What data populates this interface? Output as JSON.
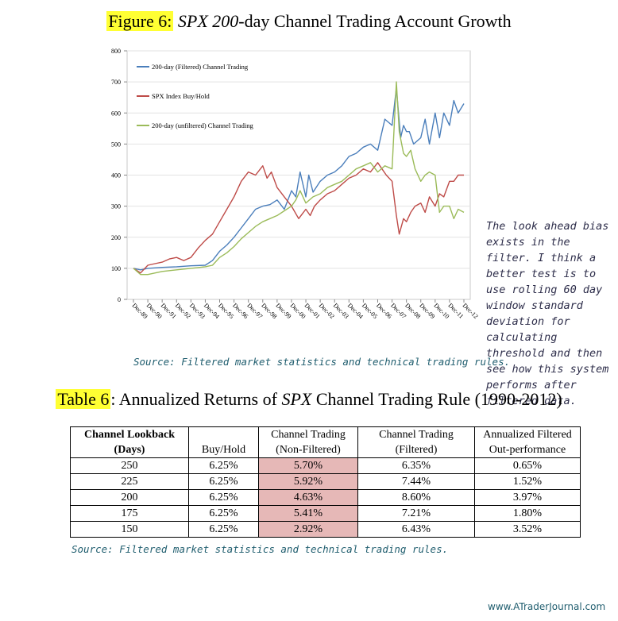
{
  "figure": {
    "label": "Figure 6:",
    "title_italic": "SPX 200",
    "title_rest": "-day Channel Trading Account Growth",
    "source": "Source: Filtered market statistics and technical trading rules."
  },
  "chart_data": {
    "type": "line",
    "ylim": [
      0,
      800
    ],
    "yticks": [
      0,
      100,
      200,
      300,
      400,
      500,
      600,
      700,
      800
    ],
    "categories": [
      "Dec-89",
      "Dec-90",
      "Dec-91",
      "Dec-92",
      "Dec-93",
      "Dec-94",
      "Dec-95",
      "Dec-96",
      "Dec-97",
      "Dec-98",
      "Dec-99",
      "Dec-00",
      "Dec-01",
      "Dec-02",
      "Dec-03",
      "Dec-04",
      "Dec-05",
      "Dec-06",
      "Dec-07",
      "Dec-08",
      "Dec-09",
      "Dec-10",
      "Dec-11",
      "Dec-12"
    ],
    "legend_position": "top-left",
    "grid": true,
    "series": [
      {
        "name": "200-day (Filtered) Channel Trading",
        "color": "#4a7ebb",
        "x": [
          0,
          0.5,
          1,
          2,
          3,
          4,
          5,
          5.5,
          6,
          6.5,
          7,
          7.5,
          8,
          8.5,
          9,
          9.5,
          10,
          10.5,
          11,
          11.3,
          11.6,
          12,
          12.2,
          12.5,
          13,
          13.5,
          14,
          14.5,
          15,
          15.5,
          16,
          16.5,
          17,
          17.5,
          18,
          18.3,
          18.6,
          18.8,
          19,
          19.2,
          19.5,
          20,
          20.3,
          20.6,
          21,
          21.3,
          21.6,
          22,
          22.3,
          22.6,
          23
        ],
        "values": [
          100,
          95,
          100,
          103,
          105,
          108,
          110,
          125,
          155,
          175,
          200,
          230,
          260,
          290,
          300,
          305,
          320,
          290,
          350,
          330,
          410,
          330,
          400,
          345,
          380,
          400,
          410,
          430,
          460,
          470,
          490,
          500,
          480,
          580,
          560,
          680,
          520,
          560,
          540,
          540,
          500,
          520,
          580,
          500,
          600,
          520,
          600,
          560,
          640,
          600,
          630
        ]
      },
      {
        "name": "SPX Index Buy/Hold",
        "color": "#be4b48",
        "x": [
          0,
          0.5,
          1,
          1.5,
          2,
          2.5,
          3,
          3.5,
          4,
          4.5,
          5,
          5.5,
          6,
          6.5,
          7,
          7.5,
          8,
          8.5,
          9,
          9.3,
          9.6,
          10,
          10.5,
          11,
          11.5,
          12,
          12.3,
          12.6,
          13,
          13.5,
          14,
          14.5,
          15,
          15.5,
          16,
          16.5,
          17,
          17.3,
          17.6,
          18,
          18.3,
          18.5,
          18.8,
          19,
          19.3,
          19.6,
          20,
          20.3,
          20.6,
          21,
          21.3,
          21.6,
          22,
          22.3,
          22.6,
          23
        ],
        "values": [
          100,
          85,
          110,
          115,
          120,
          130,
          135,
          125,
          135,
          165,
          190,
          210,
          250,
          290,
          330,
          380,
          410,
          400,
          430,
          390,
          410,
          360,
          330,
          300,
          260,
          290,
          270,
          300,
          320,
          340,
          350,
          370,
          390,
          400,
          420,
          410,
          440,
          420,
          400,
          380,
          270,
          210,
          260,
          250,
          280,
          300,
          310,
          280,
          330,
          300,
          340,
          330,
          380,
          380,
          400,
          400
        ]
      },
      {
        "name": "200-day (unfiltered) Channel Trading",
        "color": "#9bbb59",
        "x": [
          0,
          0.5,
          1,
          2,
          3,
          4,
          5,
          5.5,
          6,
          6.5,
          7,
          7.5,
          8,
          8.5,
          9,
          9.5,
          10,
          10.5,
          11,
          11.3,
          11.6,
          12,
          12.5,
          13,
          13.5,
          14,
          14.5,
          15,
          15.5,
          16,
          16.5,
          17,
          17.5,
          18,
          18.3,
          18.5,
          18.8,
          19,
          19.3,
          19.6,
          20,
          20.3,
          20.6,
          21,
          21.3,
          21.6,
          22,
          22.3,
          22.6,
          23
        ],
        "values": [
          100,
          80,
          80,
          90,
          95,
          100,
          105,
          110,
          135,
          150,
          170,
          195,
          215,
          235,
          250,
          260,
          270,
          285,
          300,
          320,
          350,
          310,
          330,
          340,
          360,
          370,
          380,
          400,
          420,
          430,
          440,
          410,
          430,
          420,
          700,
          540,
          470,
          460,
          480,
          420,
          380,
          400,
          410,
          400,
          280,
          300,
          300,
          260,
          290,
          280
        ]
      }
    ]
  },
  "note": "The look ahead bias exists in the filter. I think a better test is to use rolling 60 day window standard deviation for calculating threshold and then see how this system performs after filtered data.",
  "table": {
    "label": "Table 6",
    "title_a": ": Annualized Returns of ",
    "title_italic": "SPX",
    "title_b": " Channel Trading Rule (1990-2012)",
    "headers": [
      [
        "Channel Lookback",
        "(Days)"
      ],
      [
        "",
        "Buy/Hold"
      ],
      [
        "Channel Trading",
        "(Non-Filtered)"
      ],
      [
        "Channel Trading",
        "(Filtered)"
      ],
      [
        "Annualized Filtered",
        "Out-performance"
      ]
    ],
    "rows": [
      [
        "250",
        "6.25%",
        "5.70%",
        "6.35%",
        "0.65%"
      ],
      [
        "225",
        "6.25%",
        "5.92%",
        "7.44%",
        "1.52%"
      ],
      [
        "200",
        "6.25%",
        "4.63%",
        "8.60%",
        "3.97%"
      ],
      [
        "175",
        "6.25%",
        "5.41%",
        "7.21%",
        "1.80%"
      ],
      [
        "150",
        "6.25%",
        "2.92%",
        "6.43%",
        "3.52%"
      ]
    ],
    "source": "Source: Filtered market statistics and technical trading rules."
  },
  "footer": "www.ATraderJournal.com"
}
